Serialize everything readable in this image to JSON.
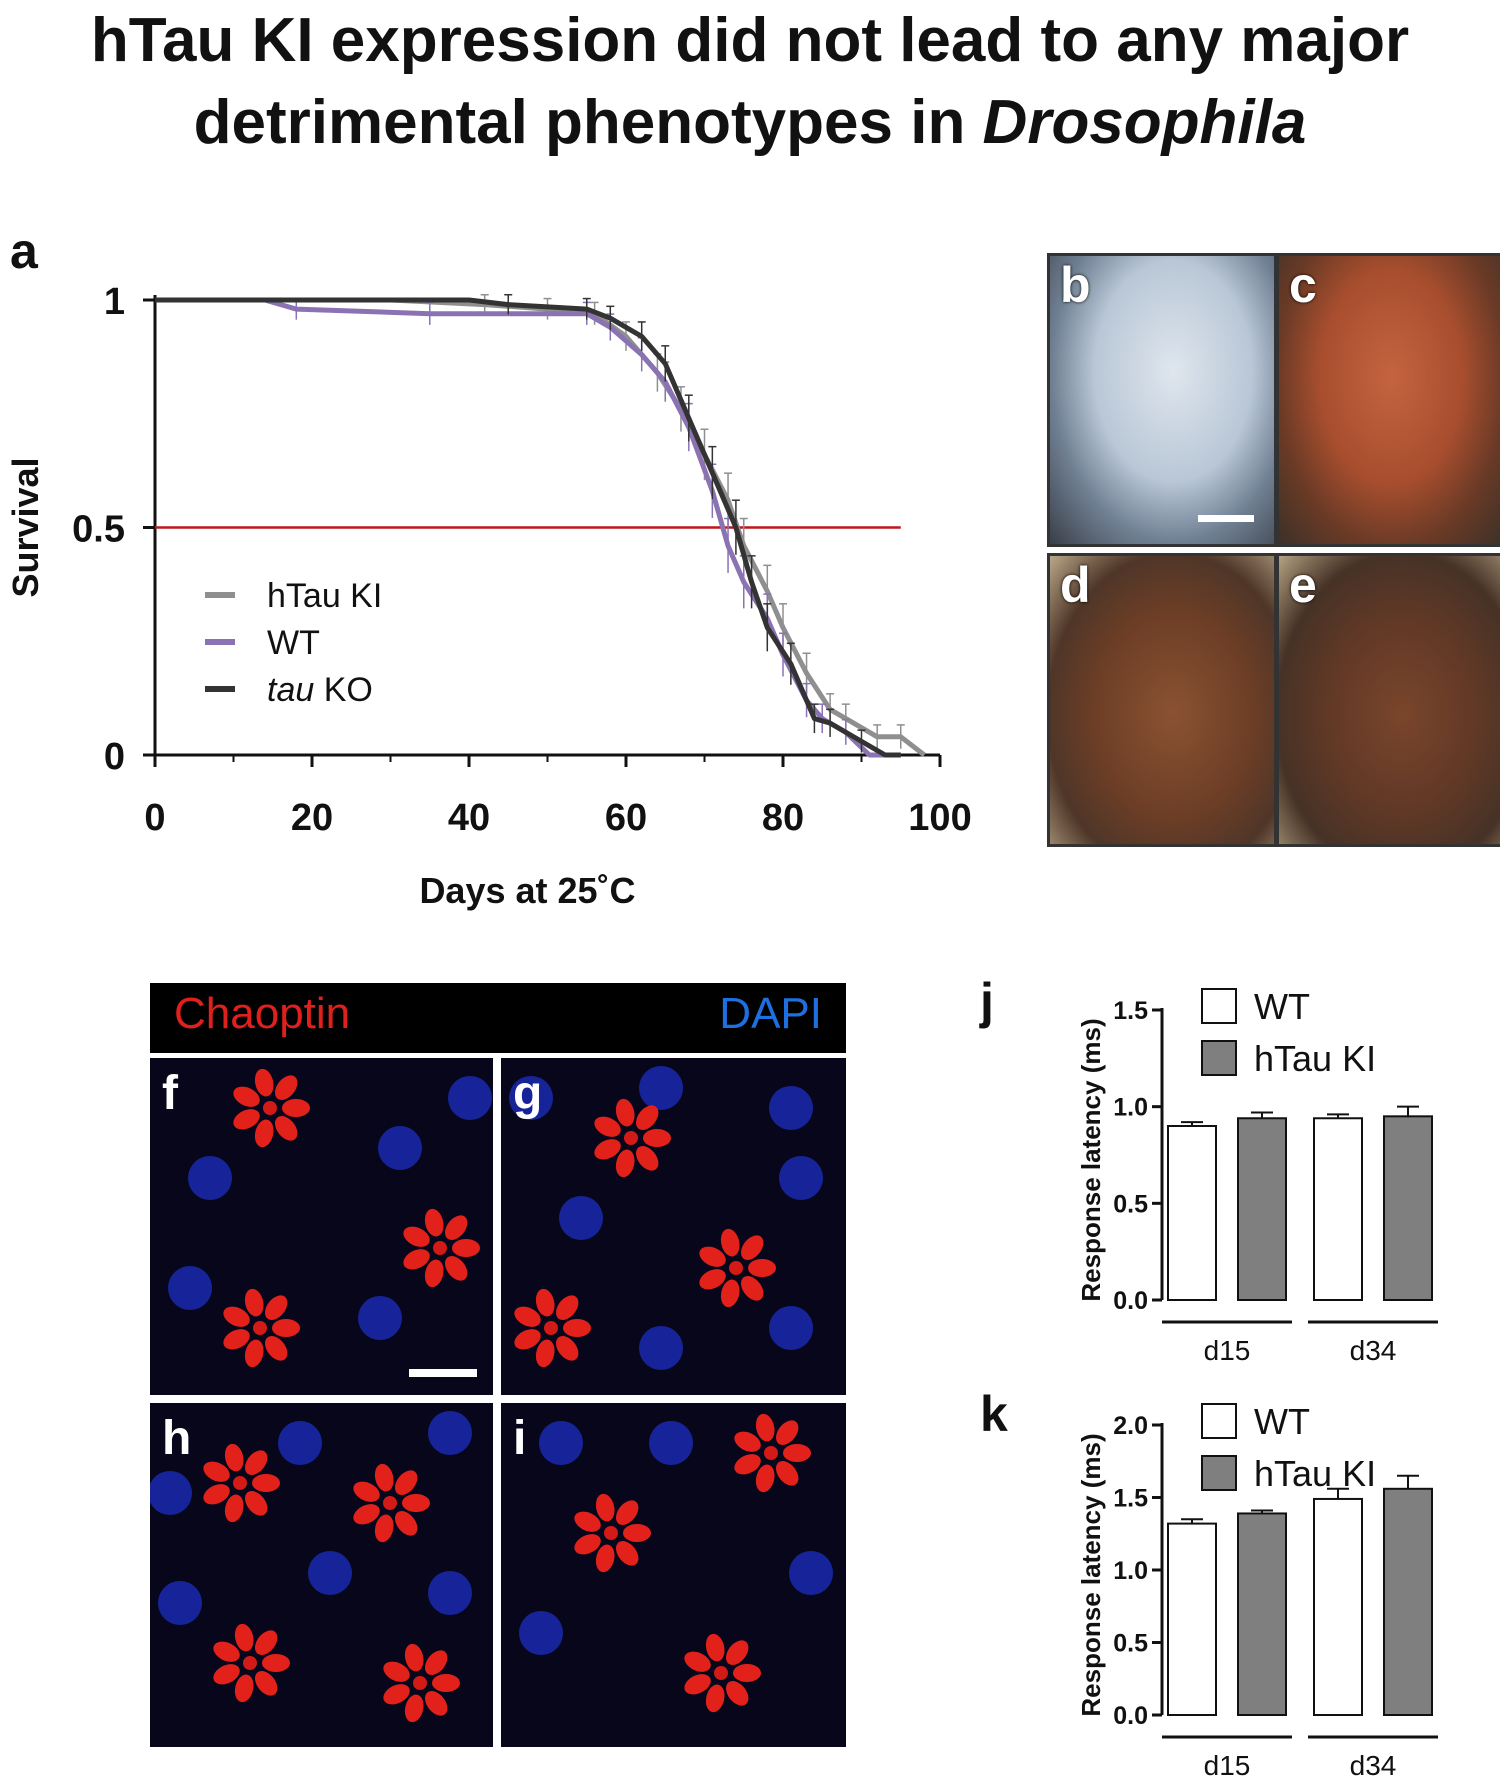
{
  "figure": {
    "title_line1": "hTau KI expression did not lead to any major",
    "title_line2_prefix": "detrimental phenotypes in ",
    "title_line2_italic": "Drosophila"
  },
  "panel_a": {
    "letter": "a"
  },
  "eye_panels": {
    "letters": [
      "b",
      "c",
      "d",
      "e"
    ]
  },
  "fluorescence": {
    "header_left": "Chaoptin",
    "header_right": "DAPI",
    "header_left_color": "#e0201c",
    "header_right_color": "#1e6fe0",
    "letters": [
      "f",
      "g",
      "h",
      "i"
    ]
  },
  "panel_j": {
    "letter": "j"
  },
  "panel_k": {
    "letter": "k"
  },
  "chart_data": [
    {
      "id": "a",
      "type": "line",
      "title": "",
      "xlabel": "Days at 25˚C",
      "ylabel": "Survival",
      "xlim": [
        0,
        100
      ],
      "ylim": [
        0,
        1
      ],
      "xticks": [
        "0",
        "20",
        "40",
        "60",
        "80",
        "100"
      ],
      "yticks": [
        "0",
        "0.5",
        "1"
      ],
      "reference_line": {
        "y": 0.5,
        "x_end": 95,
        "color": "#c0151a"
      },
      "legend_position": "lower-left",
      "series": [
        {
          "name": "hTau KI",
          "color": "#8f8f8f",
          "x": [
            0,
            12,
            30,
            42,
            50,
            56,
            60,
            64,
            67,
            70,
            73,
            75,
            78,
            80,
            83,
            86,
            88,
            92,
            95,
            98
          ],
          "y": [
            1,
            1,
            1,
            0.99,
            0.98,
            0.97,
            0.92,
            0.84,
            0.76,
            0.66,
            0.56,
            0.46,
            0.36,
            0.28,
            0.18,
            0.1,
            0.08,
            0.04,
            0.04,
            0
          ]
        },
        {
          "name": "WT",
          "color": "#8a72b3",
          "x": [
            0,
            14,
            18,
            35,
            55,
            58,
            62,
            65,
            68,
            71,
            73,
            75,
            78,
            80,
            83,
            85,
            88,
            91,
            95
          ],
          "y": [
            1,
            1,
            0.98,
            0.97,
            0.97,
            0.94,
            0.88,
            0.82,
            0.72,
            0.58,
            0.46,
            0.38,
            0.3,
            0.22,
            0.12,
            0.08,
            0.05,
            0,
            0
          ]
        },
        {
          "name": "tau KO",
          "color": "#333333",
          "x": [
            0,
            40,
            45,
            55,
            58,
            62,
            65,
            68,
            71,
            74,
            76,
            78,
            81,
            84,
            86,
            90,
            93,
            95
          ],
          "y": [
            1,
            1,
            0.99,
            0.98,
            0.96,
            0.92,
            0.86,
            0.74,
            0.62,
            0.5,
            0.38,
            0.28,
            0.2,
            0.08,
            0.07,
            0.03,
            0,
            0
          ]
        }
      ]
    },
    {
      "id": "j",
      "type": "bar",
      "title": "",
      "ylabel": "Response latency (ms)",
      "categories": [
        "d15",
        "d34"
      ],
      "ylim": [
        0,
        1.5
      ],
      "yticks": [
        "0.0",
        "0.5",
        "1.0",
        "1.5"
      ],
      "legend_position": "top",
      "series": [
        {
          "name": "WT",
          "color": "#ffffff",
          "values": [
            0.9,
            0.94
          ],
          "errors": [
            0.02,
            0.02
          ]
        },
        {
          "name": "hTau KI",
          "color": "#7f7f7f",
          "values": [
            0.94,
            0.95
          ],
          "errors": [
            0.03,
            0.05
          ]
        }
      ]
    },
    {
      "id": "k",
      "type": "bar",
      "title": "",
      "ylabel": "Response latency (ms)",
      "categories": [
        "d15",
        "d34"
      ],
      "ylim": [
        0,
        2.0
      ],
      "yticks": [
        "0.0",
        "0.5",
        "1.0",
        "1.5",
        "2.0"
      ],
      "legend_position": "top",
      "series": [
        {
          "name": "WT",
          "color": "#ffffff",
          "values": [
            1.32,
            1.49
          ],
          "errors": [
            0.03,
            0.07
          ]
        },
        {
          "name": "hTau KI",
          "color": "#7f7f7f",
          "values": [
            1.39,
            1.56
          ],
          "errors": [
            0.02,
            0.09
          ]
        }
      ]
    }
  ]
}
